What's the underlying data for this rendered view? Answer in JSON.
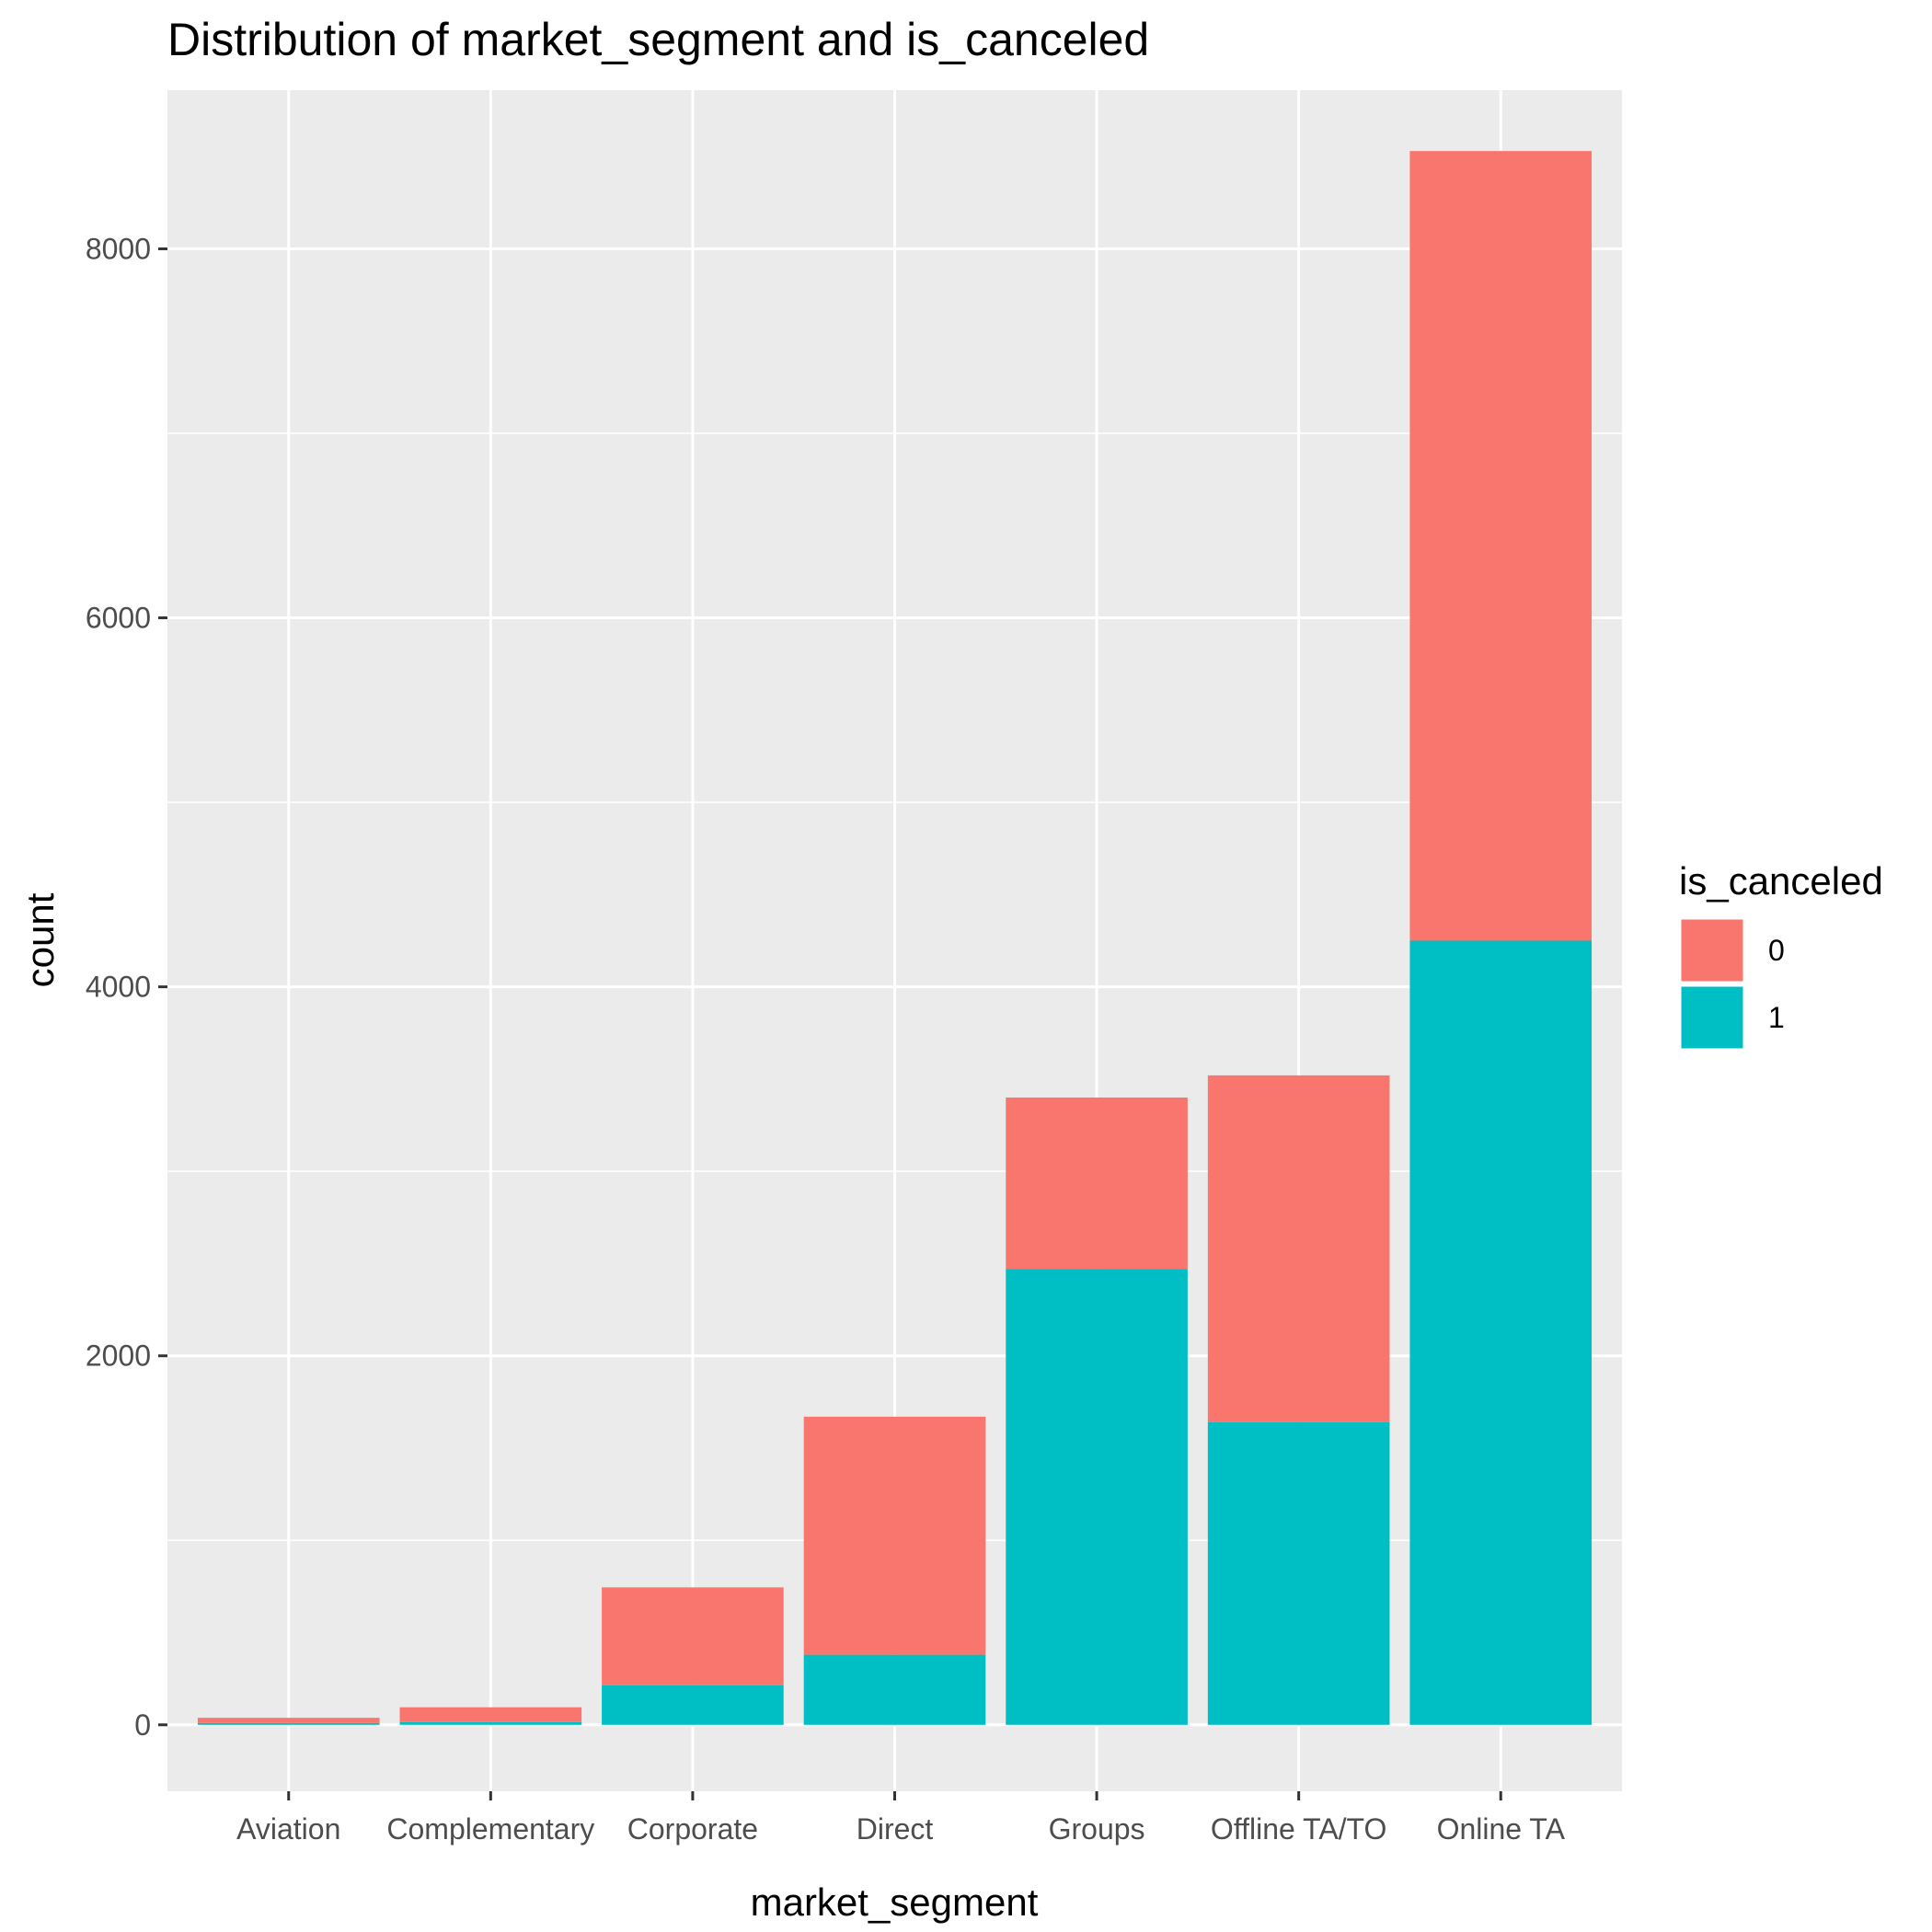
{
  "chart_data": {
    "type": "bar",
    "stacked": true,
    "title": "Distribution of market_segment and is_canceled",
    "xlabel": "market_segment",
    "ylabel": "count",
    "categories": [
      "Aviation",
      "Complementary",
      "Corporate",
      "Direct",
      "Groups",
      "Offline TA/TO",
      "Online TA"
    ],
    "series": [
      {
        "name": "0",
        "color": "#F8766D",
        "values": [
          28,
          80,
          530,
          1290,
          930,
          1880,
          4280
        ]
      },
      {
        "name": "1",
        "color": "#00BFC4",
        "values": [
          10,
          15,
          215,
          380,
          2470,
          1640,
          4250
        ]
      }
    ],
    "ylim": [
      -360,
      8860
    ],
    "yticks": [
      0,
      2000,
      4000,
      6000,
      8000
    ],
    "ytick_labels": [
      "0",
      "2000",
      "4000",
      "6000",
      "8000"
    ],
    "grid": true,
    "legend": {
      "title": "is_canceled",
      "position": "right",
      "order": [
        "0",
        "1"
      ]
    },
    "colors": {
      "panel_background": "#EBEBEB",
      "grid": "#FFFFFF",
      "tick_text": "#4D4D4D"
    }
  }
}
